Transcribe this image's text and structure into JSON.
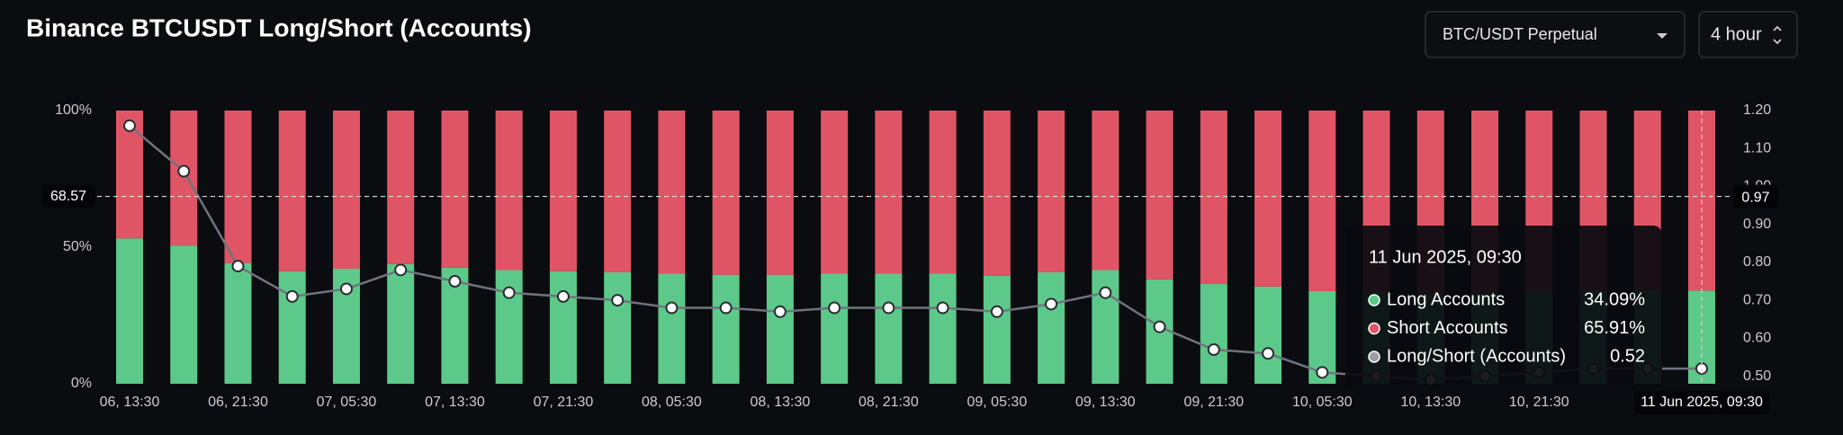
{
  "chart_data": {
    "type": "stacked-bar-line",
    "title": "Binance BTCUSDT Long/Short (Accounts)",
    "controls": {
      "market": "BTC/USDT Perpetual",
      "interval": "4 hour"
    },
    "categories": [
      "06, 13:30",
      null,
      "06, 21:30",
      null,
      "07, 05:30",
      null,
      "07, 13:30",
      null,
      "07, 21:30",
      null,
      "08, 05:30",
      null,
      "08, 13:30",
      null,
      "08, 21:30",
      null,
      "09, 05:30",
      null,
      "09, 13:30",
      null,
      "09, 21:30",
      null,
      "10, 05:30",
      null,
      "10, 13:30",
      null,
      "10, 21:30",
      null,
      null,
      null
    ],
    "series": [
      {
        "name": "Long Accounts",
        "color": "#5cc98a",
        "values": [
          53.2,
          50.6,
          44.2,
          41.2,
          42.1,
          43.8,
          42.5,
          41.6,
          41.2,
          40.8,
          40.3,
          39.9,
          39.9,
          40.3,
          40.3,
          40.3,
          39.5,
          40.8,
          41.6,
          38.2,
          36.5,
          35.6,
          33.9,
          33.5,
          33.0,
          33.3,
          33.8,
          34.2,
          34.3,
          34.09
        ]
      },
      {
        "name": "Short Accounts",
        "color": "#e05566",
        "values": [
          46.8,
          49.4,
          55.8,
          58.8,
          57.9,
          56.2,
          57.5,
          58.4,
          58.8,
          59.2,
          59.7,
          60.1,
          60.1,
          59.7,
          59.7,
          59.7,
          60.5,
          59.2,
          58.4,
          61.8,
          63.5,
          64.4,
          66.1,
          66.5,
          67.0,
          66.7,
          66.2,
          65.8,
          65.7,
          65.91
        ]
      },
      {
        "name": "Long/Short (Accounts)",
        "color": "#70747e",
        "axis": "y2",
        "values": [
          1.16,
          1.04,
          0.79,
          0.71,
          0.73,
          0.78,
          0.75,
          0.72,
          0.71,
          0.7,
          0.68,
          0.68,
          0.67,
          0.68,
          0.68,
          0.68,
          0.67,
          0.69,
          0.72,
          0.63,
          0.57,
          0.56,
          0.51,
          0.5,
          0.49,
          0.5,
          0.51,
          0.52,
          0.52,
          0.52
        ]
      }
    ],
    "ylim": [
      0,
      100
    ],
    "yticks": [
      {
        "value": 0,
        "label": "0%"
      },
      {
        "value": 50,
        "label": "50%"
      },
      {
        "value": 100,
        "label": "100%"
      }
    ],
    "y2lim": [
      0.48,
      1.2
    ],
    "y2ticks": [
      {
        "value": 0.5,
        "label": "0.50"
      },
      {
        "value": 0.6,
        "label": "0.60"
      },
      {
        "value": 0.7,
        "label": "0.70"
      },
      {
        "value": 0.8,
        "label": "0.80"
      },
      {
        "value": 0.9,
        "label": "0.90"
      },
      {
        "value": 1.0,
        "label": "1.00"
      },
      {
        "value": 1.1,
        "label": "1.10"
      },
      {
        "value": 1.2,
        "label": "1.20"
      }
    ],
    "grid": false,
    "crosshair": {
      "y_value": 68.57,
      "y2_value": 0.97,
      "x_label": "11 Jun 2025, 09:30"
    },
    "tooltip": {
      "title": "11 Jun 2025, 09:30",
      "values": [
        "34.09%",
        "65.91%",
        "0.52"
      ]
    }
  }
}
